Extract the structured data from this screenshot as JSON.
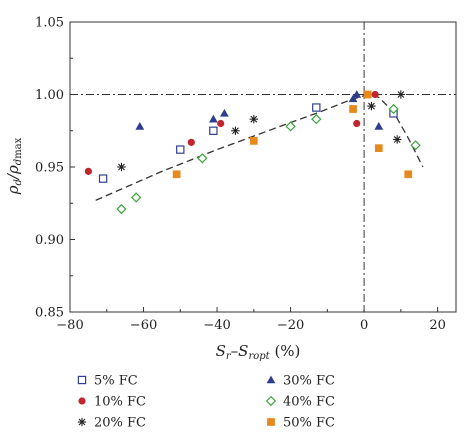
{
  "chart_data": {
    "type": "scatter",
    "title": "",
    "xlabel": "S_r–S_ropt (%)",
    "ylabel": "ρ_d/ρ_dmax",
    "xlim": [
      -80,
      25
    ],
    "ylim": [
      0.85,
      1.05
    ],
    "xticks": [
      -80,
      -60,
      -40,
      -20,
      0,
      20
    ],
    "yticks": [
      0.85,
      0.9,
      0.95,
      1.0,
      1.05
    ],
    "xtick_labels": [
      "−80",
      "−60",
      "−40",
      "−20",
      "0",
      "20"
    ],
    "ytick_labels": [
      "0.85",
      "0.90",
      "0.95",
      "1.00",
      "1.05"
    ],
    "reference_lines": {
      "x": 0,
      "y": 1.0,
      "style": "dash-dot"
    },
    "legend_placement": "bottom",
    "series": [
      {
        "name": "5% FC",
        "marker": "open-square",
        "color": "#2e3f8f",
        "points": [
          [
            -71,
            0.942
          ],
          [
            -50,
            0.962
          ],
          [
            -41,
            0.975
          ],
          [
            -13,
            0.991
          ],
          [
            8,
            0.987
          ]
        ]
      },
      {
        "name": "10% FC",
        "marker": "filled-circle",
        "color": "#c0262c",
        "points": [
          [
            -75,
            0.947
          ],
          [
            -47,
            0.967
          ],
          [
            -39,
            0.98
          ],
          [
            -2,
            0.98
          ],
          [
            3,
            1.0
          ]
        ]
      },
      {
        "name": "20% FC",
        "marker": "asterisk",
        "color": "#222222",
        "points": [
          [
            -66,
            0.95
          ],
          [
            -35,
            0.975
          ],
          [
            -30,
            0.983
          ],
          [
            2,
            0.992
          ],
          [
            9,
            0.969
          ],
          [
            10,
            1.0
          ]
        ]
      },
      {
        "name": "30% FC",
        "marker": "filled-triangle",
        "color": "#2e3d8c",
        "points": [
          [
            -61,
            0.978
          ],
          [
            -41,
            0.983
          ],
          [
            -38,
            0.987
          ],
          [
            -3,
            0.997
          ],
          [
            -2,
            1.0
          ],
          [
            4,
            0.978
          ]
        ]
      },
      {
        "name": "40% FC",
        "marker": "open-diamond",
        "color": "#3aa43a",
        "points": [
          [
            -66,
            0.921
          ],
          [
            -62,
            0.929
          ],
          [
            -44,
            0.956
          ],
          [
            -20,
            0.978
          ],
          [
            -13,
            0.983
          ],
          [
            8,
            0.99
          ],
          [
            14,
            0.965
          ]
        ]
      },
      {
        "name": "50% FC",
        "marker": "filled-square",
        "color": "#e8891e",
        "points": [
          [
            -51,
            0.945
          ],
          [
            -30,
            0.968
          ],
          [
            -3,
            0.99
          ],
          [
            1,
            1.0
          ],
          [
            4,
            0.963
          ],
          [
            12,
            0.945
          ]
        ]
      }
    ],
    "trend_curve": {
      "style": "dashed",
      "points": [
        [
          -73,
          0.927
        ],
        [
          -55,
          0.947
        ],
        [
          -40,
          0.962
        ],
        [
          -25,
          0.976
        ],
        [
          -12,
          0.988
        ],
        [
          -4,
          0.996
        ],
        [
          1,
          1.0
        ],
        [
          4,
          0.998
        ],
        [
          8,
          0.988
        ],
        [
          12,
          0.97
        ],
        [
          16,
          0.95
        ]
      ]
    }
  }
}
